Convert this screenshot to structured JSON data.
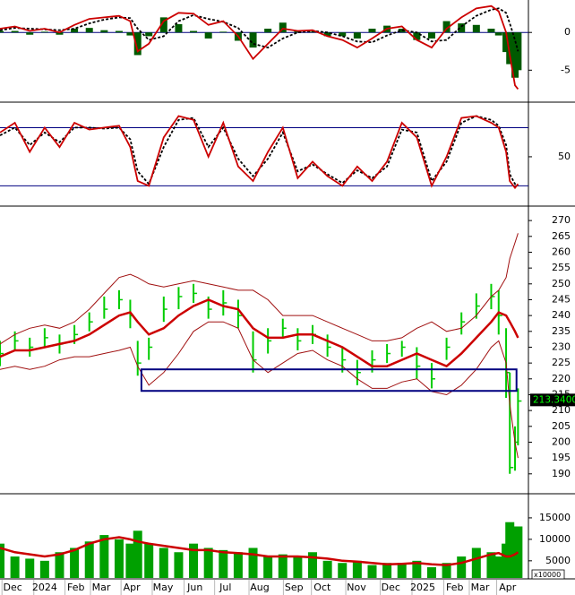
{
  "chart_data": {
    "type": "stock",
    "x": [
      0,
      2,
      4,
      6,
      8,
      10,
      12,
      14,
      16,
      17.5,
      18.5,
      20,
      22,
      24,
      26,
      28,
      30,
      32,
      34,
      36,
      38,
      40,
      42,
      44,
      46,
      48,
      50,
      52,
      54,
      56,
      58,
      60,
      62,
      64,
      66,
      67,
      68,
      68.5,
      69.2,
      69.6
    ],
    "xlim": [
      0,
      71
    ],
    "xticks": [
      {
        "value": 1.7,
        "label": "Dec"
      },
      {
        "value": 6,
        "label": "2024"
      },
      {
        "value": 10.2,
        "label": "Feb"
      },
      {
        "value": 13.6,
        "label": "Mar"
      },
      {
        "value": 17.7,
        "label": "Apr"
      },
      {
        "value": 21.9,
        "label": "May"
      },
      {
        "value": 26.2,
        "label": "Jun"
      },
      {
        "value": 30.3,
        "label": "Jul"
      },
      {
        "value": 34.9,
        "label": "Aug"
      },
      {
        "value": 39.5,
        "label": "Sep"
      },
      {
        "value": 43.3,
        "label": "Oct"
      },
      {
        "value": 47.9,
        "label": "Nov"
      },
      {
        "value": 52.5,
        "label": "Dec"
      },
      {
        "value": 56.8,
        "label": "2025"
      },
      {
        "value": 61.1,
        "label": "Feb"
      },
      {
        "value": 64.5,
        "label": "Mar"
      },
      {
        "value": 68.2,
        "label": "Apr"
      }
    ],
    "panels": [
      {
        "type": "macd",
        "ylim": [
          -9,
          4.3
        ],
        "yticks": [
          -5,
          0
        ],
        "hlines": [
          0
        ],
        "hline_color": "#000080",
        "series": [
          {
            "style": "histogram",
            "color": "#005a00",
            "values": [
              0.2,
              0.2,
              -0.3,
              0.1,
              -0.3,
              0.5,
              0.6,
              0.3,
              0.2,
              -0.4,
              -3,
              -0.5,
              2,
              1.1,
              0.2,
              -0.8,
              0.1,
              -1.1,
              -2,
              0.5,
              1.3,
              0.2,
              0.1,
              -0.5,
              -0.5,
              -0.8,
              0.5,
              0.9,
              0.5,
              -1,
              -0.8,
              1.5,
              1.2,
              1,
              0.5,
              -0.4,
              -2.6,
              -4.2,
              -6,
              -5
            ]
          },
          {
            "style": "dashed",
            "color": "#000000",
            "values": [
              0.3,
              0.6,
              0.5,
              0.4,
              0.3,
              0.5,
              1.2,
              1.7,
              2,
              1.9,
              0.5,
              -1,
              -0.5,
              1.5,
              2.3,
              1.8,
              1.4,
              0.6,
              -1.5,
              -2,
              -0.8,
              0,
              0.2,
              0,
              -0.5,
              -1.2,
              -1.3,
              -0.4,
              0.3,
              0,
              -1.2,
              -1,
              0.8,
              2.2,
              3,
              3.2,
              2.6,
              1.2,
              -1,
              -2.5
            ]
          },
          {
            "style": "line",
            "color": "#cc0000",
            "values": [
              0.5,
              0.8,
              0.2,
              0.5,
              0,
              1,
              1.8,
              2,
              2.2,
              1.5,
              -2.5,
              -1.5,
              1.5,
              2.6,
              2.5,
              1,
              1.5,
              -0.5,
              -3.5,
              -1.5,
              0.5,
              0.2,
              0.3,
              -0.5,
              -1,
              -2,
              -0.8,
              0.5,
              0.8,
              -1,
              -2,
              0.5,
              2,
              3.2,
              3.5,
              2.8,
              0,
              -3,
              -7,
              -7.5
            ]
          }
        ]
      },
      {
        "type": "stochastic",
        "ylim": [
          1,
          103.5
        ],
        "yticks": [
          50
        ],
        "hlines": [
          20,
          80
        ],
        "hline_color": "#000080",
        "series": [
          {
            "style": "dashed",
            "color": "#000000",
            "values": [
              72,
              80,
              62,
              75,
              65,
              80,
              80,
              79,
              80,
              68,
              35,
              22,
              60,
              88,
              90,
              60,
              80,
              48,
              30,
              48,
              75,
              35,
              42,
              32,
              23,
              36,
              28,
              40,
              78,
              75,
              25,
              45,
              85,
              92,
              88,
              82,
              62,
              32,
              22,
              20
            ]
          },
          {
            "style": "line",
            "color": "#cc0000",
            "values": [
              75,
              85,
              55,
              80,
              60,
              85,
              78,
              80,
              82,
              60,
              25,
              20,
              70,
              92,
              88,
              50,
              85,
              40,
              25,
              55,
              80,
              28,
              45,
              30,
              20,
              40,
              25,
              45,
              85,
              70,
              20,
              50,
              90,
              92,
              85,
              80,
              55,
              25,
              18,
              22
            ]
          }
        ]
      },
      {
        "type": "price",
        "ylim": [
          184,
          274
        ],
        "yticks": [
          190,
          195,
          200,
          205,
          210,
          215,
          220,
          225,
          230,
          235,
          240,
          245,
          250,
          255,
          260,
          265,
          270
        ],
        "candles": {
          "color": "#00cc00",
          "high": [
            232,
            235,
            233,
            236,
            234,
            237,
            241,
            246,
            248,
            245,
            232,
            233,
            246,
            249,
            250,
            246,
            248,
            245,
            235,
            236,
            239,
            236,
            237,
            234,
            230,
            226,
            229,
            231,
            232,
            230,
            225,
            233,
            241,
            247,
            250,
            248,
            236,
            222,
            205,
            217
          ],
          "low": [
            224,
            229,
            227,
            230,
            228,
            231,
            235,
            239,
            242,
            236,
            221,
            226,
            238,
            242,
            244,
            239,
            240,
            236,
            222,
            228,
            233,
            229,
            231,
            227,
            222,
            218,
            222,
            225,
            227,
            220,
            217,
            226,
            234,
            239,
            242,
            234,
            214,
            190,
            191,
            199
          ],
          "close": [
            228,
            232,
            230,
            233,
            231,
            234,
            238,
            242,
            245,
            240,
            225,
            230,
            242,
            246,
            247,
            242,
            244,
            240,
            226,
            232,
            236,
            232,
            234,
            230,
            226,
            222,
            226,
            228,
            230,
            224,
            220,
            230,
            238,
            243,
            246,
            240,
            222,
            192,
            200,
            213
          ]
        },
        "series": [
          {
            "style": "thin",
            "color": "#a01010",
            "values": [
              231,
              234,
              236,
              237,
              236,
              238,
              242,
              247,
              252,
              253,
              252,
              250,
              249,
              250,
              251,
              250,
              249,
              248,
              248,
              245,
              240,
              240,
              240,
              238,
              236,
              234,
              232,
              232,
              233,
              236,
              238,
              235,
              236,
              240,
              246,
              248,
              252,
              258,
              263,
              266
            ]
          },
          {
            "style": "thin",
            "color": "#a01010",
            "values": [
              223,
              224,
              223,
              224,
              226,
              227,
              227,
              228,
              229,
              230,
              224,
              218,
              222,
              228,
              235,
              238,
              238,
              236,
              226,
              222,
              225,
              228,
              229,
              226,
              224,
              220,
              217,
              217,
              219,
              220,
              216,
              215,
              218,
              223,
              230,
              232,
              225,
              212,
              200,
              195
            ]
          },
          {
            "style": "thick",
            "color": "#cc0000",
            "values": [
              227,
              229,
              229,
              230,
              231,
              232,
              234,
              237,
              240,
              241,
              238,
              234,
              236,
              240,
              243,
              245,
              243,
              242,
              236,
              233,
              233,
              234,
              234,
              232,
              230,
              227,
              224,
              224,
              226,
              228,
              226,
              224,
              228,
              233,
              238,
              241,
              240,
              238,
              235,
              233
            ]
          }
        ],
        "box": {
          "x": [
            19,
            69.4
          ],
          "y": [
            216.2,
            223
          ],
          "color": "#000080"
        },
        "last": {
          "value": 213.34,
          "label": "213.3400"
        }
      },
      {
        "type": "volume",
        "ylim": [
          1000,
          20200
        ],
        "yticks": [
          5000,
          10000,
          15000
        ],
        "unit": "x10000",
        "bars": {
          "color": "#00a000",
          "values": [
            9000,
            6000,
            5500,
            5000,
            7000,
            8000,
            9500,
            11000,
            10000,
            9000,
            12000,
            9000,
            8000,
            7000,
            9000,
            8000,
            7500,
            7000,
            8000,
            6000,
            6500,
            6000,
            7000,
            5000,
            4500,
            5000,
            4000,
            4500,
            4500,
            5000,
            3500,
            4500,
            6000,
            8000,
            7000,
            6000,
            9000,
            14000,
            12000,
            13000
          ]
        },
        "series": [
          {
            "style": "thick",
            "color": "#cc0000",
            "values": [
              8000,
              7000,
              6500,
              6000,
              6500,
              7500,
              9000,
              10000,
              10500,
              10000,
              9500,
              9000,
              8500,
              8000,
              7500,
              7500,
              7000,
              6800,
              6500,
              6000,
              6000,
              6000,
              5800,
              5500,
              5000,
              4800,
              4500,
              4200,
              4300,
              4500,
              4200,
              4000,
              4500,
              5500,
              6500,
              6800,
              6000,
              6000,
              6500,
              7000
            ]
          }
        ]
      }
    ]
  }
}
